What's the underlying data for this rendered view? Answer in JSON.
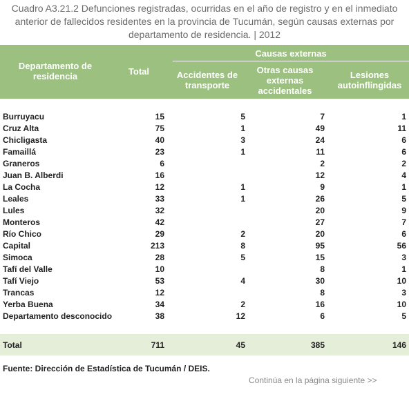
{
  "title_lines": [
    "Cuadro A3.21.2 Defunciones registradas, ocurridas en el año de registro y en el inmediato",
    "anterior de fallecidos residentes en la provincia de Tucumán, según  causas externas por",
    "departamento de residencia. | 2012"
  ],
  "table": {
    "group_header": "Causas externas",
    "headers": [
      "Departamento de residencia",
      "Total",
      "Accidentes de transporte",
      "Otras causas externas accidentales",
      "Lesiones autoinflingidas"
    ],
    "rows": [
      [
        "Burruyacu",
        15,
        5,
        7,
        1
      ],
      [
        "Cruz Alta",
        75,
        1,
        49,
        11
      ],
      [
        "Chicligasta",
        40,
        3,
        24,
        6
      ],
      [
        "Famaillá",
        23,
        1,
        11,
        6
      ],
      [
        "Graneros",
        6,
        null,
        2,
        2
      ],
      [
        "Juan B. Alberdi",
        16,
        null,
        12,
        4
      ],
      [
        "La Cocha",
        12,
        1,
        9,
        1
      ],
      [
        "Leales",
        33,
        1,
        26,
        5
      ],
      [
        "Lules",
        32,
        null,
        20,
        9
      ],
      [
        "Monteros",
        42,
        null,
        27,
        7
      ],
      [
        "Río Chico",
        29,
        2,
        20,
        6
      ],
      [
        "Capital",
        213,
        8,
        95,
        56
      ],
      [
        "Simoca",
        28,
        5,
        15,
        3
      ],
      [
        "Tafí del Valle",
        10,
        null,
        8,
        1
      ],
      [
        "Tafí Viejo",
        53,
        4,
        30,
        10
      ],
      [
        "Trancas",
        12,
        null,
        8,
        3
      ],
      [
        "Yerba Buena",
        34,
        2,
        16,
        10
      ],
      [
        "Departamento desconocido",
        38,
        12,
        6,
        5
      ]
    ],
    "total": [
      "Total",
      711,
      45,
      385,
      146
    ]
  },
  "source": "Fuente: Dirección de Estadística de Tucumán / DEIS.",
  "continuation": "Continúa en la página siguiente >>"
}
